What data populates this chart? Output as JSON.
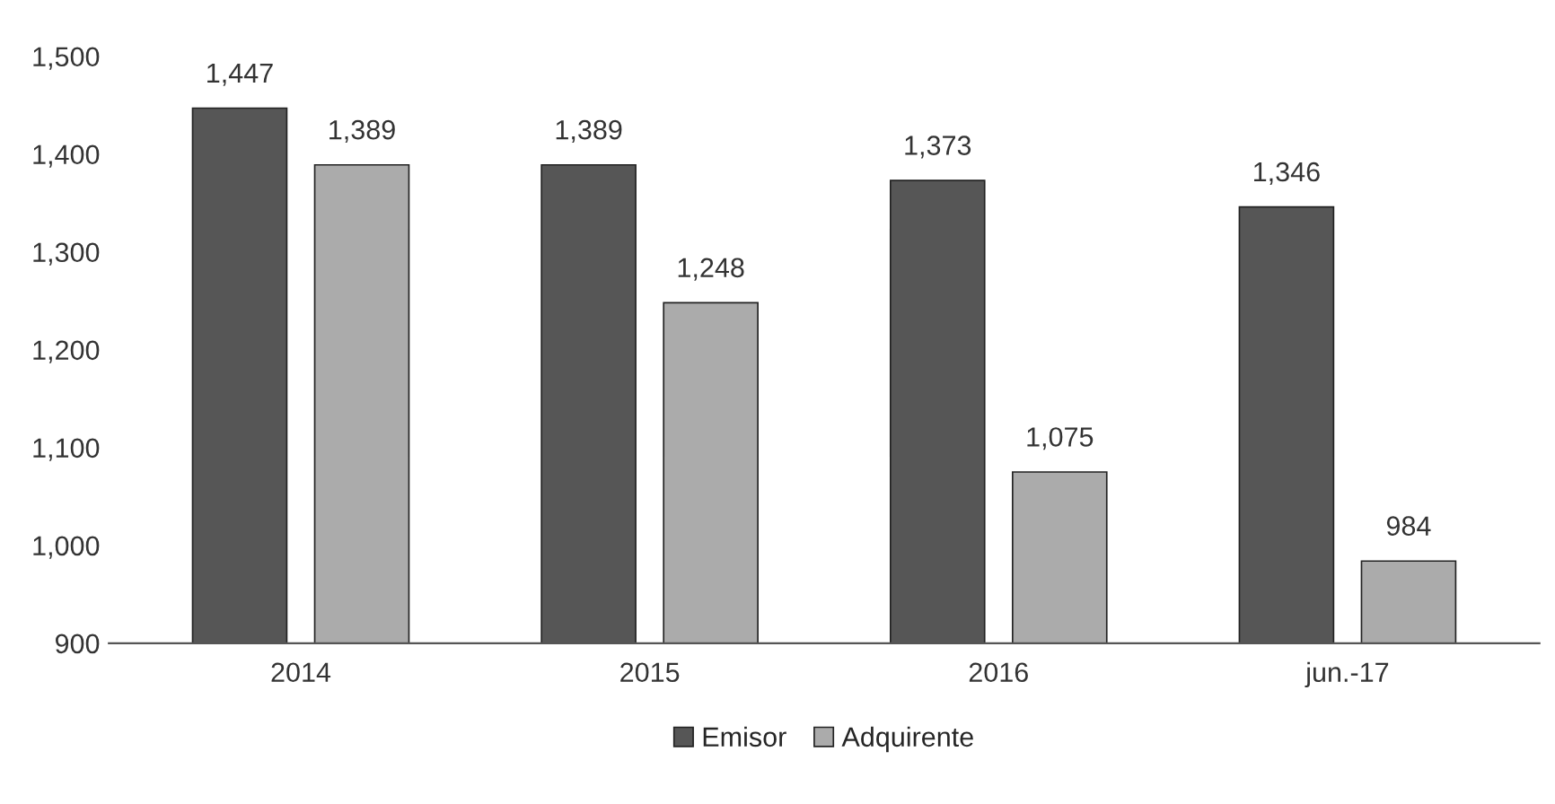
{
  "chart_data": {
    "type": "bar",
    "categories": [
      "2014",
      "2015",
      "2016",
      "jun.-17"
    ],
    "series": [
      {
        "name": "Emisor",
        "color": "#565656",
        "values": [
          1447,
          1389,
          1373,
          1346
        ],
        "value_labels": [
          "1,447",
          "1,389",
          "1,373",
          "1,346"
        ]
      },
      {
        "name": "Adquirente",
        "color": "#ababab",
        "values": [
          1389,
          1248,
          1075,
          984
        ],
        "value_labels": [
          "1,389",
          "1,248",
          "1,075",
          "984"
        ]
      }
    ],
    "ylim": [
      900,
      1500
    ],
    "yticks": [
      {
        "value": 900,
        "label": "900"
      },
      {
        "value": 1000,
        "label": "1,000"
      },
      {
        "value": 1100,
        "label": "1,100"
      },
      {
        "value": 1200,
        "label": "1,200"
      },
      {
        "value": 1300,
        "label": "1,300"
      },
      {
        "value": 1400,
        "label": "1,400"
      },
      {
        "value": 1500,
        "label": "1,500"
      }
    ],
    "legend": "bottom",
    "grid": false
  }
}
